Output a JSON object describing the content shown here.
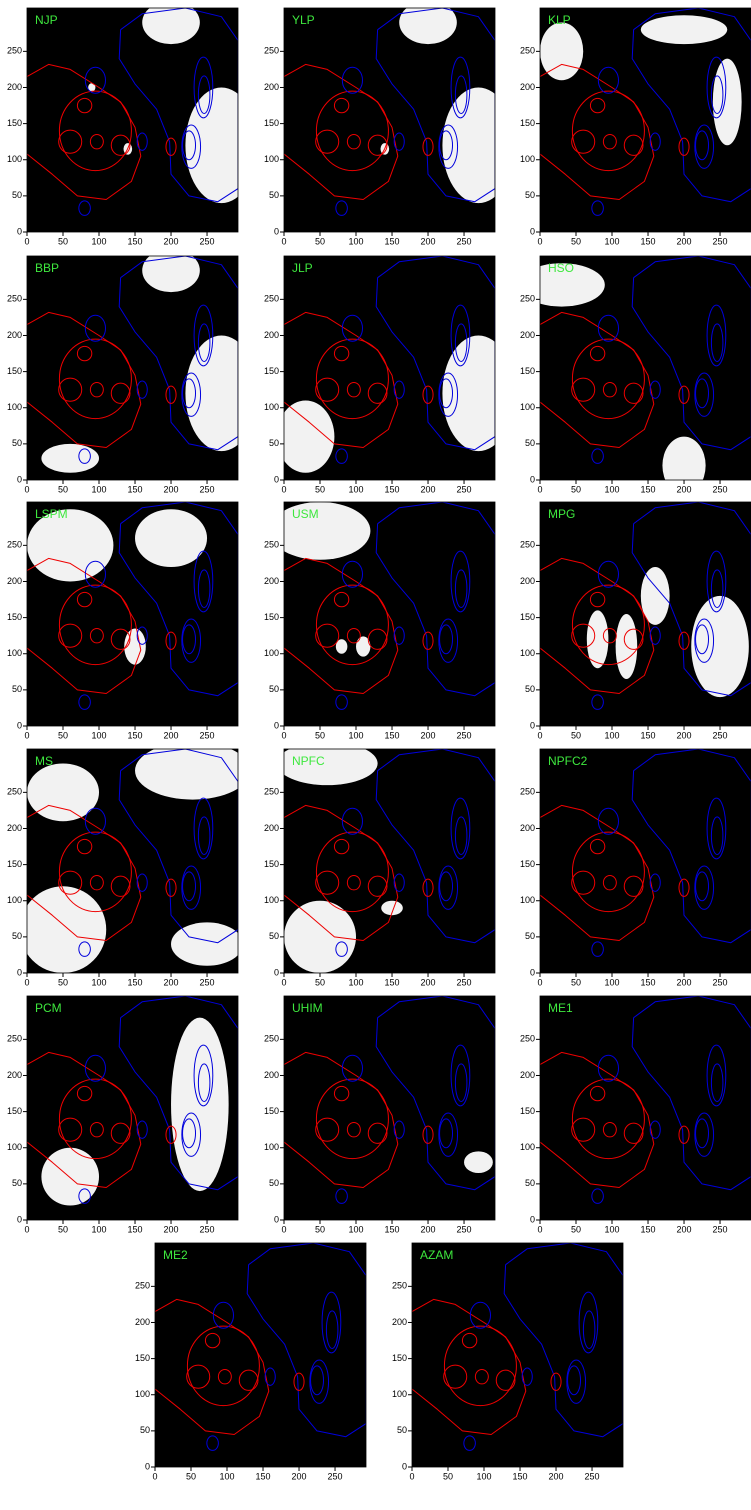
{
  "chart_data": [
    {
      "type": "image",
      "title": "NJP",
      "xlim": [
        0,
        293
      ],
      "ylim": [
        0,
        310
      ],
      "xticks": [
        0,
        50,
        100,
        150,
        200,
        250
      ],
      "yticks": [
        0,
        50,
        100,
        150,
        200,
        250
      ]
    },
    {
      "type": "image",
      "title": "YLP",
      "xlim": [
        0,
        293
      ],
      "ylim": [
        0,
        310
      ],
      "xticks": [
        0,
        50,
        100,
        150,
        200,
        250
      ],
      "yticks": [
        0,
        50,
        100,
        150,
        200,
        250
      ]
    },
    {
      "type": "image",
      "title": "KLP",
      "xlim": [
        0,
        293
      ],
      "ylim": [
        0,
        310
      ],
      "xticks": [
        0,
        50,
        100,
        150,
        200,
        250
      ],
      "yticks": [
        0,
        50,
        100,
        150,
        200,
        250
      ]
    },
    {
      "type": "image",
      "title": "BBP",
      "xlim": [
        0,
        293
      ],
      "ylim": [
        0,
        310
      ],
      "xticks": [
        0,
        50,
        100,
        150,
        200,
        250
      ],
      "yticks": [
        0,
        50,
        100,
        150,
        200,
        250
      ]
    },
    {
      "type": "image",
      "title": "JLP",
      "xlim": [
        0,
        293
      ],
      "ylim": [
        0,
        310
      ],
      "xticks": [
        0,
        50,
        100,
        150,
        200,
        250
      ],
      "yticks": [
        0,
        50,
        100,
        150,
        200,
        250
      ]
    },
    {
      "type": "image",
      "title": "HSO",
      "xlim": [
        0,
        293
      ],
      "ylim": [
        0,
        310
      ],
      "xticks": [
        0,
        50,
        100,
        150,
        200,
        250
      ],
      "yticks": [
        0,
        50,
        100,
        150,
        200,
        250
      ]
    },
    {
      "type": "image",
      "title": "LSPM",
      "xlim": [
        0,
        293
      ],
      "ylim": [
        0,
        310
      ],
      "xticks": [
        0,
        50,
        100,
        150,
        200,
        250
      ],
      "yticks": [
        0,
        50,
        100,
        150,
        200,
        250
      ]
    },
    {
      "type": "image",
      "title": "USM",
      "xlim": [
        0,
        293
      ],
      "ylim": [
        0,
        310
      ],
      "xticks": [
        0,
        50,
        100,
        150,
        200,
        250
      ],
      "yticks": [
        0,
        50,
        100,
        150,
        200,
        250
      ]
    },
    {
      "type": "image",
      "title": "MPG",
      "xlim": [
        0,
        293
      ],
      "ylim": [
        0,
        310
      ],
      "xticks": [
        0,
        50,
        100,
        150,
        200,
        250
      ],
      "yticks": [
        0,
        50,
        100,
        150,
        200,
        250
      ]
    },
    {
      "type": "image",
      "title": "MS",
      "xlim": [
        0,
        293
      ],
      "ylim": [
        0,
        310
      ],
      "xticks": [
        0,
        50,
        100,
        150,
        200,
        250
      ],
      "yticks": [
        0,
        50,
        100,
        150,
        200,
        250
      ]
    },
    {
      "type": "image",
      "title": "NPFC",
      "xlim": [
        0,
        293
      ],
      "ylim": [
        0,
        310
      ],
      "xticks": [
        0,
        50,
        100,
        150,
        200,
        250
      ],
      "yticks": [
        0,
        50,
        100,
        150,
        200,
        250
      ]
    },
    {
      "type": "image",
      "title": "NPFC2",
      "xlim": [
        0,
        293
      ],
      "ylim": [
        0,
        310
      ],
      "xticks": [
        0,
        50,
        100,
        150,
        200,
        250
      ],
      "yticks": [
        0,
        50,
        100,
        150,
        200,
        250
      ]
    },
    {
      "type": "image",
      "title": "PCM",
      "xlim": [
        0,
        293
      ],
      "ylim": [
        0,
        310
      ],
      "xticks": [
        0,
        50,
        100,
        150,
        200,
        250
      ],
      "yticks": [
        0,
        50,
        100,
        150,
        200,
        250
      ]
    },
    {
      "type": "image",
      "title": "UHIM",
      "xlim": [
        0,
        293
      ],
      "ylim": [
        0,
        310
      ],
      "xticks": [
        0,
        50,
        100,
        150,
        200,
        250
      ],
      "yticks": [
        0,
        50,
        100,
        150,
        200,
        250
      ]
    },
    {
      "type": "image",
      "title": "ME1",
      "xlim": [
        0,
        293
      ],
      "ylim": [
        0,
        310
      ],
      "xticks": [
        0,
        50,
        100,
        150,
        200,
        250
      ],
      "yticks": [
        0,
        50,
        100,
        150,
        200,
        250
      ]
    },
    {
      "type": "image",
      "title": "ME2",
      "xlim": [
        0,
        293
      ],
      "ylim": [
        0,
        310
      ],
      "xticks": [
        0,
        50,
        100,
        150,
        200,
        250
      ],
      "yticks": [
        0,
        50,
        100,
        150,
        200,
        250
      ]
    },
    {
      "type": "image",
      "title": "AZAM",
      "xlim": [
        0,
        293
      ],
      "ylim": [
        0,
        310
      ],
      "xticks": [
        0,
        50,
        100,
        150,
        200,
        250
      ],
      "yticks": [
        0,
        50,
        100,
        150,
        200,
        250
      ]
    }
  ]
}
